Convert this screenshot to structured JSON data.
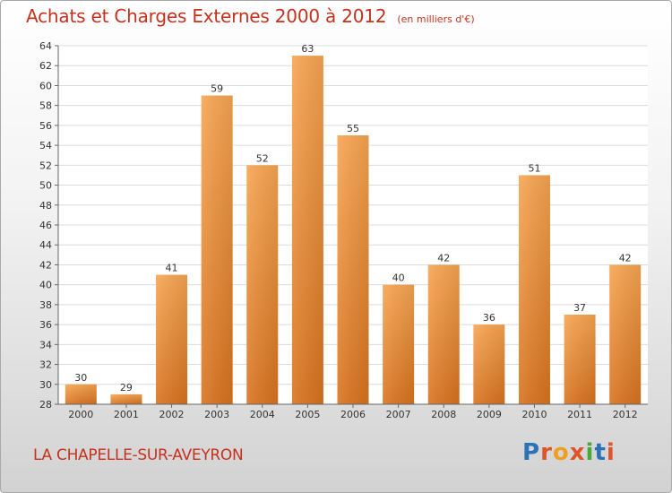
{
  "chart_data": {
    "type": "bar",
    "title": "Achats et Charges Externes 2000 à 2012",
    "subtitle": "(en milliers d'€)",
    "categories": [
      "2000",
      "2001",
      "2002",
      "2003",
      "2004",
      "2005",
      "2006",
      "2007",
      "2008",
      "2009",
      "2010",
      "2011",
      "2012"
    ],
    "values": [
      30,
      29,
      41,
      59,
      52,
      63,
      55,
      40,
      42,
      36,
      51,
      37,
      42
    ],
    "ylim": [
      28,
      64
    ],
    "yticks": [
      28,
      30,
      32,
      34,
      36,
      38,
      40,
      42,
      44,
      46,
      48,
      50,
      52,
      54,
      56,
      58,
      60,
      62,
      64
    ],
    "grid": true,
    "bar_color": "#f0913a"
  },
  "footer": {
    "town": "LA CHAPELLE-SUR-AVEYRON",
    "logo_letters": [
      {
        "char": "P",
        "color": "#2a73b8"
      },
      {
        "char": "r",
        "color": "#e0542a"
      },
      {
        "char": "o",
        "color": "#f0a020"
      },
      {
        "char": "x",
        "color": "#e0542a"
      },
      {
        "char": "i",
        "color": "#4aa83a"
      },
      {
        "char": "t",
        "color": "#2a73b8"
      },
      {
        "char": "i",
        "color": "#e0542a"
      }
    ]
  }
}
